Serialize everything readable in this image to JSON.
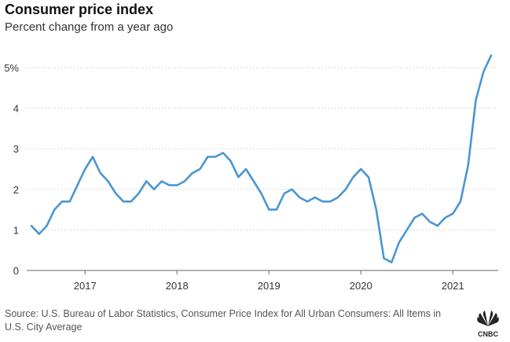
{
  "chart_data": {
    "type": "line",
    "title": "Consumer price index",
    "subtitle": "Percent change from a year ago",
    "ylim": [
      0,
      5.5
    ],
    "yticks": [
      0,
      1,
      2,
      3,
      4,
      5
    ],
    "ytick_labels": [
      "0",
      "1",
      "2",
      "3",
      "4",
      "5%"
    ],
    "xticks": [
      "2017",
      "2018",
      "2019",
      "2020",
      "2021"
    ],
    "grid": "horizontal dotted",
    "line_color": "#4a97d2",
    "series": [
      {
        "x": [
          "2016-06",
          "2016-07",
          "2016-08",
          "2016-09",
          "2016-10",
          "2016-11",
          "2016-12",
          "2017-01",
          "2017-02",
          "2017-03",
          "2017-04",
          "2017-05",
          "2017-06",
          "2017-07",
          "2017-08",
          "2017-09",
          "2017-10",
          "2017-11",
          "2017-12",
          "2018-01",
          "2018-02",
          "2018-03",
          "2018-04",
          "2018-05",
          "2018-06",
          "2018-07",
          "2018-08",
          "2018-09",
          "2018-10",
          "2018-11",
          "2018-12",
          "2019-01",
          "2019-02",
          "2019-03",
          "2019-04",
          "2019-05",
          "2019-06",
          "2019-07",
          "2019-08",
          "2019-09",
          "2019-10",
          "2019-11",
          "2019-12",
          "2020-01",
          "2020-02",
          "2020-03",
          "2020-04",
          "2020-05",
          "2020-06",
          "2020-07",
          "2020-08",
          "2020-09",
          "2020-10",
          "2020-11",
          "2020-12",
          "2021-01",
          "2021-02",
          "2021-03",
          "2021-04",
          "2021-05",
          "2021-06"
        ],
        "values": [
          1.1,
          0.9,
          1.1,
          1.5,
          1.7,
          1.7,
          2.1,
          2.5,
          2.8,
          2.4,
          2.2,
          1.9,
          1.7,
          1.7,
          1.9,
          2.2,
          2.0,
          2.2,
          2.1,
          2.1,
          2.2,
          2.4,
          2.5,
          2.8,
          2.8,
          2.9,
          2.7,
          2.3,
          2.5,
          2.2,
          1.9,
          1.5,
          1.5,
          1.9,
          2.0,
          1.8,
          1.7,
          1.8,
          1.7,
          1.7,
          1.8,
          2.0,
          2.3,
          2.5,
          2.3,
          1.5,
          0.3,
          0.2,
          0.7,
          1.0,
          1.3,
          1.4,
          1.2,
          1.1,
          1.3,
          1.4,
          1.7,
          2.6,
          4.2,
          4.9,
          5.3
        ]
      }
    ]
  },
  "source": "Source: U.S. Bureau of Labor Statistics, Consumer Price Index for All Urban Consumers: All Items in U.S. City Average",
  "logo": {
    "name": "CNBC"
  }
}
